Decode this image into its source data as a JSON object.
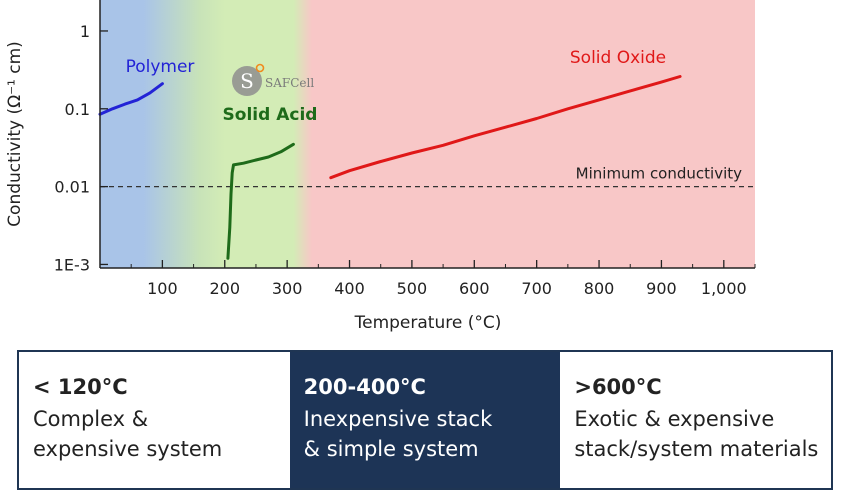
{
  "chart_data": {
    "type": "line",
    "xlabel": "Temperature (°C)",
    "ylabel": "Conductivity (Ω⁻¹ cm)",
    "xlim": [
      0,
      1050
    ],
    "ylim": [
      0.0009,
      2.5
    ],
    "y_scale": "log",
    "x_ticks": [
      {
        "value": 100,
        "label": "100"
      },
      {
        "value": 200,
        "label": "200"
      },
      {
        "value": 300,
        "label": "300"
      },
      {
        "value": 400,
        "label": "400"
      },
      {
        "value": 500,
        "label": "500"
      },
      {
        "value": 600,
        "label": "600"
      },
      {
        "value": 700,
        "label": "700"
      },
      {
        "value": 800,
        "label": "800"
      },
      {
        "value": 900,
        "label": "900"
      },
      {
        "value": 1000,
        "label": "1,000"
      }
    ],
    "y_ticks": [
      {
        "value": 1,
        "label": "1"
      },
      {
        "value": 0.1,
        "label": "0.1"
      },
      {
        "value": 0.01,
        "label": "0.01"
      },
      {
        "value": 0.001,
        "label": "1E-3"
      }
    ],
    "bands": [
      {
        "from": 0,
        "to": 120,
        "color": "#a9c4e8"
      },
      {
        "from": 120,
        "to": 200,
        "color": "#c8e3b8"
      },
      {
        "from": 200,
        "to": 320,
        "color": "#d3ecb6"
      },
      {
        "from": 320,
        "to": 1050,
        "color": "#f8c7c7"
      }
    ],
    "reference_line": {
      "y": 0.01,
      "label": "Minimum conductivity",
      "style": "dashed",
      "color": "#333333"
    },
    "series": [
      {
        "name": "Polymer",
        "color": "#2323d6",
        "x": [
          0,
          20,
          40,
          60,
          80,
          100
        ],
        "y": [
          0.085,
          0.1,
          0.115,
          0.13,
          0.16,
          0.21
        ]
      },
      {
        "name": "Solid Acid",
        "color": "#1e6b1a",
        "x": [
          205,
          208,
          210,
          212,
          214,
          230,
          250,
          270,
          290,
          310
        ],
        "y": [
          0.0012,
          0.003,
          0.008,
          0.015,
          0.019,
          0.02,
          0.022,
          0.024,
          0.028,
          0.035
        ]
      },
      {
        "name": "Solid Oxide",
        "color": "#e01818",
        "x": [
          370,
          400,
          450,
          500,
          550,
          600,
          650,
          700,
          750,
          800,
          850,
          900,
          930
        ],
        "y": [
          0.013,
          0.016,
          0.021,
          0.027,
          0.034,
          0.045,
          0.058,
          0.075,
          0.1,
          0.13,
          0.17,
          0.22,
          0.26
        ]
      }
    ]
  },
  "logo": {
    "text": "SAFCell",
    "icon": "safcell-logo-icon"
  },
  "panels": [
    {
      "heading": "< 120°C",
      "text": "Complex &\nexpensive system",
      "highlight": false
    },
    {
      "heading": "200-400°C",
      "text": "Inexpensive stack\n& simple system",
      "highlight": true
    },
    {
      "heading": ">600°C",
      "text": "Exotic & expensive\nstack/system materials",
      "highlight": false
    }
  ]
}
